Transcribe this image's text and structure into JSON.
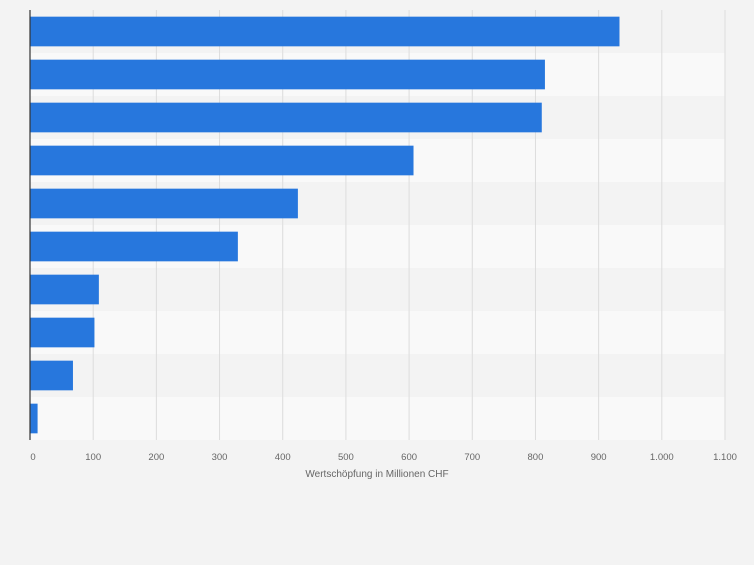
{
  "chart_data": {
    "type": "bar",
    "orientation": "horizontal",
    "categories": [
      "",
      "",
      "",
      "",
      "",
      "",
      "",
      "",
      "",
      ""
    ],
    "values": [
      933,
      815,
      810,
      607,
      424,
      329,
      109,
      102,
      68,
      12
    ],
    "xlabel": "Wertschöpfung in Millionen CHF",
    "xlim": [
      0,
      1100
    ],
    "ticks": [
      0,
      100,
      200,
      300,
      400,
      500,
      600,
      700,
      800,
      900,
      1000,
      1100
    ],
    "tick_labels": [
      "0",
      "100",
      "200",
      "300",
      "400",
      "500",
      "600",
      "700",
      "800",
      "900",
      "1.000",
      "1.100"
    ],
    "grid": true,
    "bar_color": "#2777dd",
    "background_color": "#f3f3f3",
    "band_colors": [
      "#f3f3f3",
      "#f9f9f9"
    ]
  }
}
